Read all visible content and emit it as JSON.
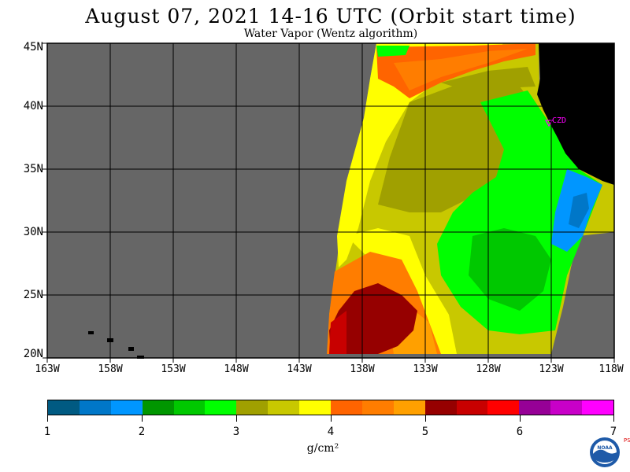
{
  "title": "August 07, 2021  14-16 UTC  (Orbit start time)",
  "subtitle": "Water Vapor (Wentz algorithm)",
  "map": {
    "lat_labels": [
      "45N",
      "40N",
      "35N",
      "30N",
      "25N",
      "20N"
    ],
    "lon_labels": [
      "163W",
      "158W",
      "153W",
      "148W",
      "143W",
      "138W",
      "133W",
      "128W",
      "123W",
      "118W"
    ],
    "station_label": "CZD",
    "colors": {
      "no_data": "#666666",
      "land": "#000000",
      "grid": "#000000",
      "station": "#ff00ff"
    }
  },
  "colorbar": {
    "units": "g/cm²",
    "labels": [
      "1",
      "2",
      "3",
      "4",
      "5",
      "6",
      "7"
    ],
    "colors": [
      "#005a82",
      "#0077c8",
      "#0096ff",
      "#009600",
      "#00c800",
      "#00ff00",
      "#a0a000",
      "#c8c800",
      "#ffff00",
      "#ff6400",
      "#ff7d00",
      "#ffa000",
      "#960000",
      "#c80000",
      "#ff0000",
      "#960096",
      "#c800c8",
      "#ff00ff"
    ]
  },
  "logo": {
    "text": "NOAA",
    "side_text": "PSL"
  }
}
